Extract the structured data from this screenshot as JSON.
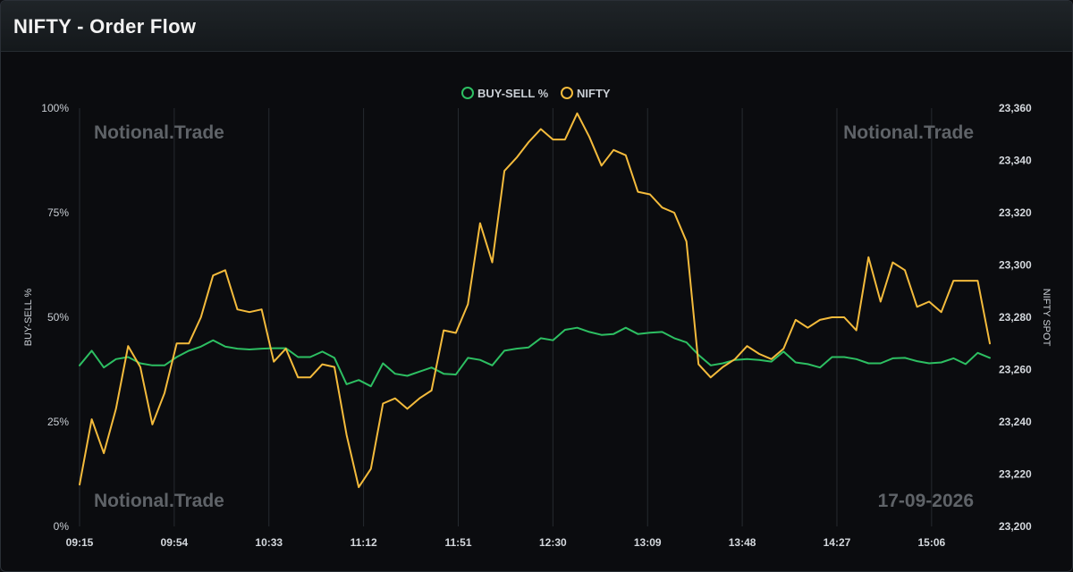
{
  "header": {
    "title": "NIFTY - Order Flow"
  },
  "watermarks": {
    "top_left": "Notional.Trade",
    "top_right": "Notional.Trade",
    "bottom_left": "Notional.Trade",
    "bottom_right": "17-09-2026"
  },
  "colors": {
    "buy_sell": "#2dbf62",
    "nifty": "#f4bb3c",
    "grid": "#262a30",
    "background": "#0b0c0f"
  },
  "chart_data": {
    "type": "line",
    "title": "",
    "xlabel": "",
    "ylabel": "BUY-SELL %",
    "y2label": "NIFTY SPOT",
    "legend_position": "top-center",
    "grid": "vertical",
    "x_ticks": [
      "09:15",
      "09:54",
      "10:33",
      "11:12",
      "11:51",
      "12:30",
      "13:09",
      "13:48",
      "14:27",
      "15:06"
    ],
    "y_ticks": [
      "0%",
      "25%",
      "50%",
      "75%",
      "100%"
    ],
    "y2_ticks": [
      "23,200",
      "23,220",
      "23,240",
      "23,260",
      "23,280",
      "23,300",
      "23,320",
      "23,340",
      "23,360"
    ],
    "ylim": [
      0,
      100
    ],
    "y2lim": [
      23200,
      23360
    ],
    "xlim": [
      "09:15",
      "15:30"
    ],
    "series": [
      {
        "name": "BUY-SELL %",
        "axis": "left",
        "color": "#2dbf62",
        "x": [
          "09:15",
          "09:20",
          "09:25",
          "09:30",
          "09:35",
          "09:40",
          "09:45",
          "09:50",
          "09:55",
          "10:00",
          "10:05",
          "10:10",
          "10:15",
          "10:20",
          "10:25",
          "10:30",
          "10:35",
          "10:40",
          "10:45",
          "10:50",
          "10:55",
          "11:00",
          "11:05",
          "11:10",
          "11:15",
          "11:20",
          "11:25",
          "11:30",
          "11:35",
          "11:40",
          "11:45",
          "11:50",
          "11:55",
          "12:00",
          "12:05",
          "12:10",
          "12:15",
          "12:20",
          "12:25",
          "12:30",
          "12:35",
          "12:40",
          "12:45",
          "12:50",
          "12:55",
          "13:00",
          "13:05",
          "13:10",
          "13:15",
          "13:20",
          "13:25",
          "13:30",
          "13:35",
          "13:40",
          "13:45",
          "13:50",
          "13:55",
          "14:00",
          "14:05",
          "14:10",
          "14:15",
          "14:20",
          "14:25",
          "14:30",
          "14:35",
          "14:40",
          "14:45",
          "14:50",
          "14:55",
          "15:00",
          "15:05",
          "15:10",
          "15:15",
          "15:20",
          "15:25",
          "15:30"
        ],
        "values": [
          38.5,
          42,
          38,
          40,
          40.5,
          39,
          38.5,
          38.5,
          40.5,
          42,
          43,
          44.5,
          43,
          42.5,
          42.3,
          42.5,
          42.6,
          42.6,
          40.5,
          40.5,
          41.8,
          40.3,
          34,
          35,
          33.5,
          39,
          36.5,
          36,
          37,
          38,
          36.5,
          36.3,
          40.3,
          39.8,
          38.5,
          42,
          42.5,
          42.8,
          45,
          44.5,
          47,
          47.5,
          46.5,
          45.8,
          46,
          47.5,
          46,
          46.3,
          46.5,
          45,
          44,
          41,
          38.5,
          39,
          39.8,
          40,
          39.8,
          39.4,
          41.8,
          39.2,
          38.8,
          38,
          40.5,
          40.5,
          40,
          39,
          39,
          40.2,
          40.3,
          39.5,
          39,
          39.2,
          40.2,
          38.8,
          41.5,
          40.3
        ]
      },
      {
        "name": "NIFTY",
        "axis": "right",
        "color": "#f4bb3c",
        "x": [
          "09:15",
          "09:20",
          "09:25",
          "09:30",
          "09:35",
          "09:40",
          "09:45",
          "09:50",
          "09:55",
          "10:00",
          "10:05",
          "10:10",
          "10:15",
          "10:20",
          "10:25",
          "10:30",
          "10:35",
          "10:40",
          "10:45",
          "10:50",
          "10:55",
          "11:00",
          "11:05",
          "11:10",
          "11:15",
          "11:20",
          "11:25",
          "11:30",
          "11:35",
          "11:40",
          "11:45",
          "11:50",
          "11:55",
          "12:00",
          "12:05",
          "12:10",
          "12:15",
          "12:20",
          "12:25",
          "12:30",
          "12:35",
          "12:40",
          "12:45",
          "12:50",
          "12:55",
          "13:00",
          "13:05",
          "13:10",
          "13:15",
          "13:20",
          "13:25",
          "13:30",
          "13:35",
          "13:40",
          "13:45",
          "13:50",
          "13:55",
          "14:00",
          "14:05",
          "14:10",
          "14:15",
          "14:20",
          "14:25",
          "14:30",
          "14:35",
          "14:40",
          "14:45",
          "14:50",
          "14:55",
          "15:00",
          "15:05",
          "15:10",
          "15:15",
          "15:20",
          "15:25",
          "15:30"
        ],
        "values": [
          23216,
          23241,
          23228,
          23245,
          23269,
          23261,
          23239,
          23251,
          23270,
          23270,
          23280,
          23296,
          23298,
          23283,
          23282,
          23283,
          23263,
          23268,
          23257,
          23257,
          23262,
          23261,
          23235,
          23215,
          23222,
          23247,
          23249,
          23245,
          23249,
          23252,
          23275,
          23274,
          23285,
          23316,
          23301,
          23336,
          23341,
          23347,
          23352,
          23348,
          23348,
          23358,
          23349,
          23338,
          23344,
          23342,
          23328,
          23327,
          23322,
          23320,
          23309,
          23262,
          23257,
          23261,
          23264,
          23269,
          23266,
          23264,
          23268,
          23279,
          23276,
          23279,
          23280,
          23280,
          23275,
          23303,
          23286,
          23301,
          23298,
          23284,
          23286,
          23282,
          23294,
          23294,
          23294,
          23270
        ]
      }
    ]
  }
}
